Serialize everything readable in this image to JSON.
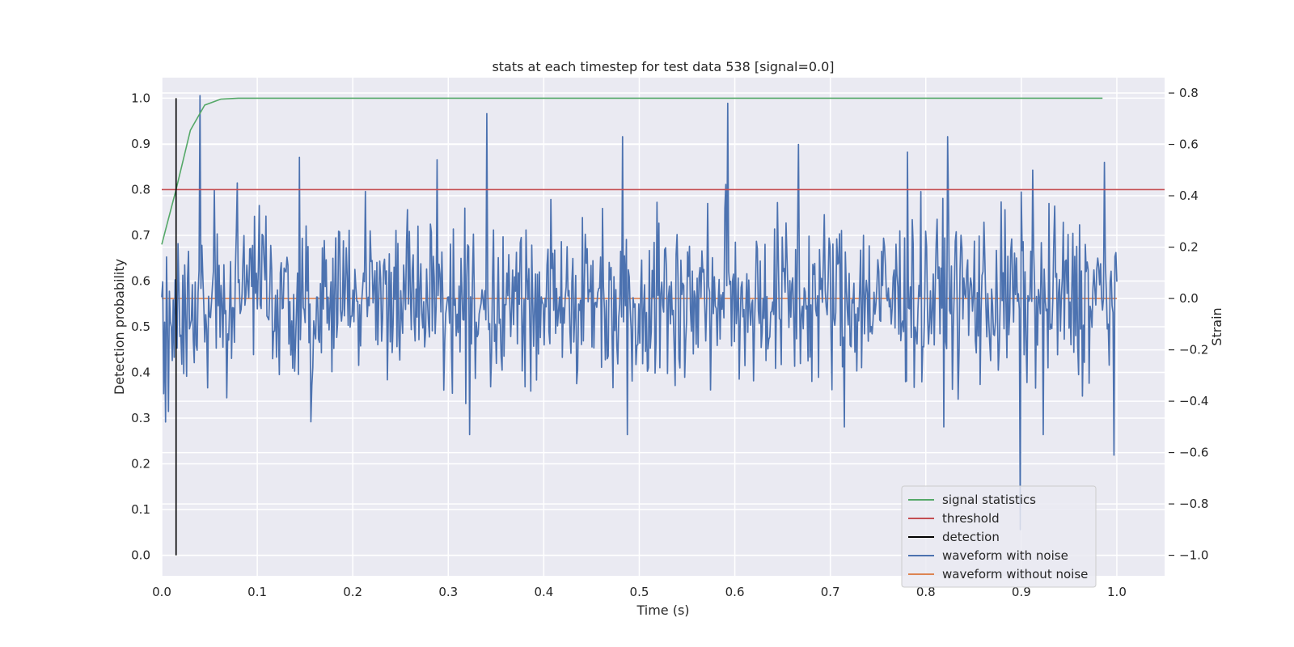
{
  "chart_data": {
    "type": "line",
    "title": "stats at each timestep for test data 538 [signal=0.0]",
    "xlabel": "Time (s)",
    "ylabel": "Detection probability",
    "y2label": "Strain",
    "xlim": [
      0.0,
      1.05
    ],
    "ylim": [
      -0.045,
      1.045
    ],
    "y2lim": [
      -1.08,
      0.86
    ],
    "xticks": [
      "0.0",
      "0.1",
      "0.2",
      "0.3",
      "0.4",
      "0.5",
      "0.6",
      "0.7",
      "0.8",
      "0.9",
      "1.0"
    ],
    "yticks": [
      "0.0",
      "0.1",
      "0.2",
      "0.3",
      "0.4",
      "0.5",
      "0.6",
      "0.7",
      "0.8",
      "0.9",
      "1.0"
    ],
    "y2ticks": [
      "−1.0",
      "−0.8",
      "−0.6",
      "−0.4",
      "−0.2",
      "0.0",
      "0.2",
      "0.4",
      "0.6",
      "0.8"
    ],
    "grid": true,
    "legend_position": "lower-right",
    "series": [
      {
        "name": "signal statistics",
        "color": "#55a868",
        "axis": "left",
        "x": [
          0.0,
          0.015,
          0.03,
          0.045,
          0.062,
          0.08,
          0.1,
          0.2,
          0.4,
          0.6,
          0.8,
          0.985
        ],
        "y": [
          0.68,
          0.8,
          0.93,
          0.985,
          0.998,
          1.0,
          1.0,
          1.0,
          1.0,
          1.0,
          1.0,
          1.0
        ]
      },
      {
        "name": "threshold",
        "color": "#c44e52",
        "axis": "left",
        "x": [
          0.0,
          1.05
        ],
        "y": [
          0.8,
          0.8
        ]
      },
      {
        "name": "detection",
        "color": "#000000",
        "axis": "left",
        "x": [
          0.015,
          0.015
        ],
        "y": [
          0.0,
          1.0
        ]
      },
      {
        "name": "waveform with noise",
        "color": "#4c72b0",
        "axis": "right",
        "x_start": 0.0,
        "x_end": 1.0,
        "noise_amplitude": 0.17,
        "peaks": [
          {
            "x": 0.0405,
            "y": 0.79
          },
          {
            "x": 0.034,
            "y": -0.25
          },
          {
            "x": 0.007,
            "y": -0.44
          },
          {
            "x": 0.1445,
            "y": 0.55
          },
          {
            "x": 0.1565,
            "y": -0.48
          },
          {
            "x": 0.2885,
            "y": 0.54
          },
          {
            "x": 0.3225,
            "y": -0.53
          },
          {
            "x": 0.3405,
            "y": 0.72
          },
          {
            "x": 0.4825,
            "y": 0.63
          },
          {
            "x": 0.4875,
            "y": -0.53
          },
          {
            "x": 0.5925,
            "y": 0.76
          },
          {
            "x": 0.6665,
            "y": 0.6
          },
          {
            "x": 0.7145,
            "y": -0.5
          },
          {
            "x": 0.7805,
            "y": 0.57
          },
          {
            "x": 0.8225,
            "y": 0.63
          },
          {
            "x": 0.8985,
            "y": -0.9
          },
          {
            "x": 0.9115,
            "y": 0.5
          },
          {
            "x": 0.9225,
            "y": -0.53
          },
          {
            "x": 0.9865,
            "y": 0.53
          },
          {
            "x": 0.9965,
            "y": -0.61
          }
        ]
      },
      {
        "name": "waveform without noise",
        "color": "#dd8452",
        "axis": "right",
        "x": [
          0.0,
          1.0
        ],
        "y": [
          0.0,
          0.0
        ]
      }
    ]
  }
}
